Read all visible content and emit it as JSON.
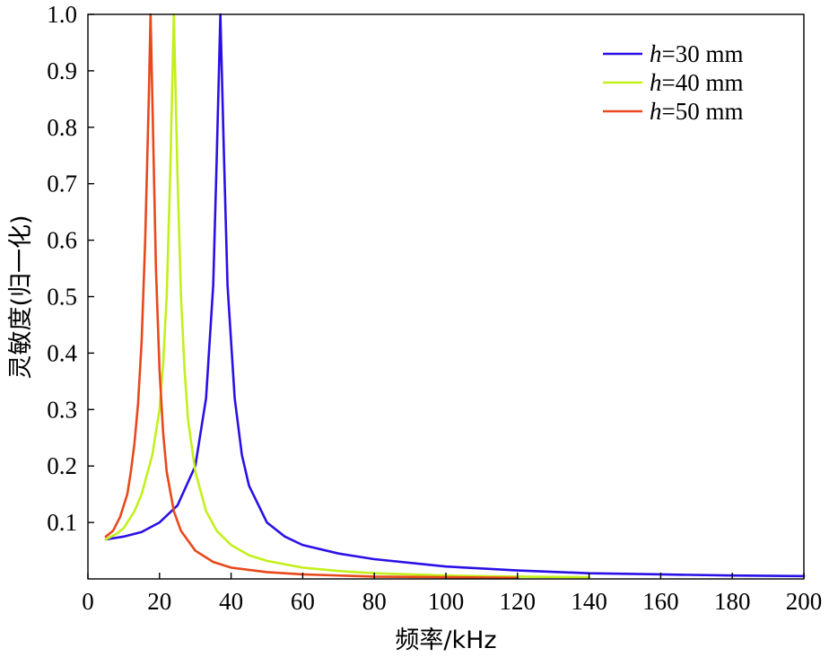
{
  "chart_data": {
    "type": "line",
    "title": "",
    "xlabel": "频率/kHz",
    "ylabel": "灵敏度(归一化)",
    "xlim": [
      0,
      200
    ],
    "ylim": [
      0,
      1.0
    ],
    "xticks": [
      0,
      20,
      40,
      60,
      80,
      100,
      120,
      140,
      160,
      180,
      200
    ],
    "yticks": [
      0.1,
      0.2,
      0.3,
      0.4,
      0.5,
      0.6,
      0.7,
      0.8,
      0.9,
      1.0
    ],
    "xtick_labels": [
      "0",
      "20",
      "40",
      "60",
      "80",
      "100",
      "120",
      "140",
      "160",
      "180",
      "200"
    ],
    "ytick_labels": [
      "0.1",
      "0.2",
      "0.3",
      "0.4",
      "0.5",
      "0.6",
      "0.7",
      "0.8",
      "0.9",
      "1.0"
    ],
    "grid": false,
    "legend_position": "top-right",
    "series": [
      {
        "name": "h=30 mm",
        "legend_var": "h",
        "legend_rest": "=30 mm",
        "color": "#2a10e6",
        "x": [
          5,
          10,
          15,
          20,
          25,
          30,
          33,
          35,
          36,
          37,
          38,
          39,
          41,
          43,
          45,
          50,
          55,
          60,
          70,
          80,
          100,
          120,
          140,
          160,
          180,
          200
        ],
        "y": [
          0.07,
          0.075,
          0.083,
          0.1,
          0.13,
          0.2,
          0.32,
          0.52,
          0.75,
          1.0,
          0.75,
          0.52,
          0.32,
          0.22,
          0.165,
          0.1,
          0.075,
          0.06,
          0.045,
          0.035,
          0.022,
          0.015,
          0.01,
          0.008,
          0.006,
          0.005
        ]
      },
      {
        "name": "h=40 mm",
        "legend_var": "h",
        "legend_rest": "=40 mm",
        "color": "#c3f01c",
        "x": [
          5,
          8,
          10,
          13,
          15,
          18,
          20,
          21,
          22,
          23,
          24,
          25,
          26,
          27,
          28,
          30,
          33,
          36,
          40,
          45,
          50,
          60,
          70,
          80,
          100,
          120,
          140
        ],
        "y": [
          0.07,
          0.08,
          0.09,
          0.12,
          0.15,
          0.22,
          0.3,
          0.38,
          0.5,
          0.72,
          1.0,
          0.72,
          0.5,
          0.37,
          0.28,
          0.19,
          0.12,
          0.085,
          0.06,
          0.042,
          0.032,
          0.02,
          0.014,
          0.01,
          0.006,
          0.004,
          0.003
        ]
      },
      {
        "name": "h=50 mm",
        "legend_var": "h",
        "legend_rest": "=50 mm",
        "color": "#e8481c",
        "x": [
          5,
          7,
          9,
          11,
          12,
          13,
          14,
          15,
          16,
          17,
          17.5,
          18,
          19,
          20,
          21,
          22,
          24,
          26,
          30,
          35,
          40,
          50,
          60,
          80,
          100,
          120
        ],
        "y": [
          0.075,
          0.085,
          0.11,
          0.15,
          0.19,
          0.24,
          0.31,
          0.42,
          0.6,
          0.85,
          1.0,
          0.85,
          0.55,
          0.37,
          0.26,
          0.19,
          0.12,
          0.085,
          0.05,
          0.03,
          0.02,
          0.012,
          0.008,
          0.004,
          0.003,
          0.002
        ]
      }
    ]
  }
}
